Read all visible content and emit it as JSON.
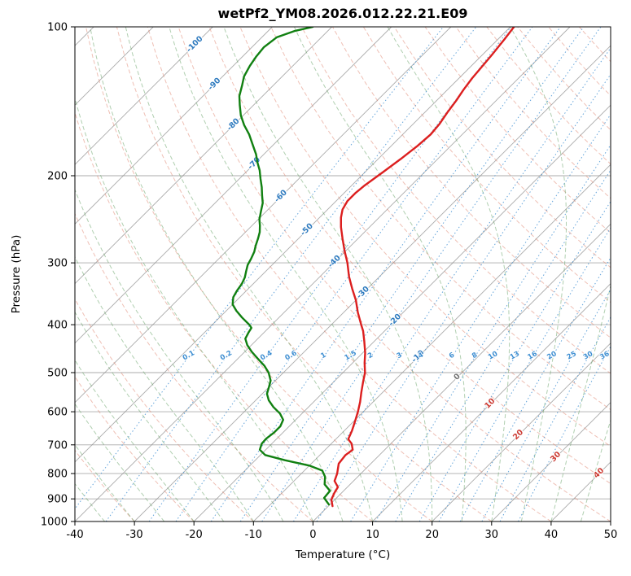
{
  "chart_data": {
    "type": "skewt_log_p",
    "title": "wetPf2_YM08.2026.012.22.21.E09",
    "xlabel": "Temperature (°C)",
    "ylabel": "Pressure (hPa)",
    "xlim": [
      -40,
      50
    ],
    "pressure_lim": [
      1000,
      100
    ],
    "temp_ticks": [
      -40,
      -30,
      -20,
      -10,
      0,
      10,
      20,
      30,
      40,
      50
    ],
    "pressure_ticks": [
      100,
      200,
      300,
      400,
      500,
      600,
      700,
      800,
      900,
      1000
    ],
    "skew_angle_deg": 45,
    "grid": true,
    "isotherms": {
      "t_min": -160,
      "t_max": 60,
      "step": 10
    },
    "dry_adiabats": {
      "theta_min": -40,
      "theta_max": 180,
      "step": 10
    },
    "moist_adiabats": {
      "t0_min": -40,
      "t0_max": 45,
      "step": 5
    },
    "mixing_ratio_lines": {
      "values_g_kg": [
        0.1,
        0.2,
        0.4,
        0.6,
        1,
        1.5,
        2,
        3,
        4,
        6,
        8,
        10,
        13,
        16,
        20,
        25,
        30,
        36
      ],
      "label_pressure_hpa": 462
    },
    "isotherm_labels": [
      [
        -100,
        108
      ],
      [
        -90,
        130
      ],
      [
        -80,
        157
      ],
      [
        -70,
        188
      ],
      [
        -60,
        219
      ],
      [
        -50,
        256
      ],
      [
        -40,
        297
      ],
      [
        -30,
        343
      ],
      [
        -20,
        390
      ],
      [
        -10,
        462
      ],
      [
        0,
        508
      ],
      [
        10,
        575
      ],
      [
        20,
        665
      ],
      [
        30,
        737
      ],
      [
        40,
        795
      ]
    ],
    "series": [
      {
        "name": "temperature",
        "color": "#dc1f1f",
        "points_p_t": [
          [
            931,
            0.7
          ],
          [
            903,
            -0.6
          ],
          [
            876,
            -1.2
          ],
          [
            852,
            -1.6
          ],
          [
            828,
            -3.2
          ],
          [
            800,
            -4.0
          ],
          [
            764,
            -5.4
          ],
          [
            734,
            -5.7
          ],
          [
            716,
            -5.4
          ],
          [
            696,
            -6.6
          ],
          [
            682,
            -7.9
          ],
          [
            656,
            -8.7
          ],
          [
            627,
            -9.8
          ],
          [
            600,
            -10.9
          ],
          [
            573,
            -12.2
          ],
          [
            548,
            -13.6
          ],
          [
            523,
            -15.0
          ],
          [
            500,
            -16.3
          ],
          [
            478,
            -18.0
          ],
          [
            456,
            -19.6
          ],
          [
            432,
            -21.7
          ],
          [
            412,
            -23.6
          ],
          [
            400,
            -25.0
          ],
          [
            378,
            -27.6
          ],
          [
            357,
            -30.0
          ],
          [
            338,
            -32.6
          ],
          [
            320,
            -35.1
          ],
          [
            300,
            -37.7
          ],
          [
            283,
            -40.3
          ],
          [
            268,
            -42.6
          ],
          [
            254,
            -44.8
          ],
          [
            243,
            -46.4
          ],
          [
            234,
            -47.5
          ],
          [
            225,
            -48.1
          ],
          [
            217,
            -48.1
          ],
          [
            209,
            -47.8
          ],
          [
            197,
            -47.0
          ],
          [
            185,
            -46.2
          ],
          [
            174,
            -45.6
          ],
          [
            165,
            -45.3
          ],
          [
            157,
            -45.6
          ],
          [
            149,
            -46.2
          ],
          [
            141,
            -46.7
          ],
          [
            134,
            -47.3
          ],
          [
            127,
            -47.8
          ],
          [
            120,
            -48.1
          ],
          [
            114,
            -48.4
          ],
          [
            106,
            -48.9
          ],
          [
            100,
            -49.4
          ]
        ]
      },
      {
        "name": "dewpoint",
        "color": "#118011",
        "points_p_t": [
          [
            924,
            -0.2
          ],
          [
            896,
            -2.1
          ],
          [
            867,
            -2.3
          ],
          [
            841,
            -4.3
          ],
          [
            812,
            -5.5
          ],
          [
            789,
            -7.0
          ],
          [
            771,
            -10.0
          ],
          [
            752,
            -15.0
          ],
          [
            734,
            -19.2
          ],
          [
            716,
            -21.0
          ],
          [
            696,
            -21.7
          ],
          [
            680,
            -21.8
          ],
          [
            661,
            -21.5
          ],
          [
            642,
            -21.5
          ],
          [
            623,
            -22.1
          ],
          [
            605,
            -23.7
          ],
          [
            587,
            -25.9
          ],
          [
            569,
            -27.8
          ],
          [
            552,
            -29.2
          ],
          [
            535,
            -30.0
          ],
          [
            519,
            -30.8
          ],
          [
            500,
            -32.5
          ],
          [
            484,
            -34.4
          ],
          [
            469,
            -36.6
          ],
          [
            454,
            -38.8
          ],
          [
            440,
            -40.7
          ],
          [
            427,
            -42.1
          ],
          [
            415,
            -42.6
          ],
          [
            406,
            -42.9
          ],
          [
            400,
            -43.8
          ],
          [
            387,
            -46.2
          ],
          [
            375,
            -48.3
          ],
          [
            364,
            -50.0
          ],
          [
            352,
            -51.1
          ],
          [
            341,
            -51.6
          ],
          [
            331,
            -51.9
          ],
          [
            321,
            -52.5
          ],
          [
            312,
            -53.3
          ],
          [
            303,
            -54.1
          ],
          [
            294,
            -54.6
          ],
          [
            285,
            -55.2
          ],
          [
            277,
            -56.0
          ],
          [
            268,
            -56.8
          ],
          [
            260,
            -57.6
          ],
          [
            252,
            -58.7
          ],
          [
            245,
            -59.8
          ],
          [
            236,
            -60.9
          ],
          [
            227,
            -62.0
          ],
          [
            219,
            -63.4
          ],
          [
            211,
            -64.8
          ],
          [
            203,
            -66.4
          ],
          [
            195,
            -68.0
          ],
          [
            188,
            -69.7
          ],
          [
            181,
            -71.3
          ],
          [
            173,
            -73.5
          ],
          [
            165,
            -75.8
          ],
          [
            158,
            -78.2
          ],
          [
            151,
            -80.4
          ],
          [
            144,
            -82.3
          ],
          [
            138,
            -83.9
          ],
          [
            131,
            -85.3
          ],
          [
            126,
            -86.4
          ],
          [
            120,
            -87.2
          ],
          [
            115,
            -87.7
          ],
          [
            110,
            -88.0
          ],
          [
            105,
            -87.5
          ],
          [
            102,
            -85.6
          ],
          [
            100,
            -83.2
          ]
        ]
      }
    ],
    "style": {
      "isotherm_color": "#8f8f8f",
      "grid_color": "#8f8f8f",
      "dry_adiabat_color": "#e0816c",
      "moist_adiabat_color": "#62a062",
      "mixing_color": "#3f8fd2",
      "label_neg_color": "#2f7bbf",
      "label_zero_color": "#757575",
      "label_pos_color": "#cc3b33",
      "axis_color": "#000000"
    }
  }
}
